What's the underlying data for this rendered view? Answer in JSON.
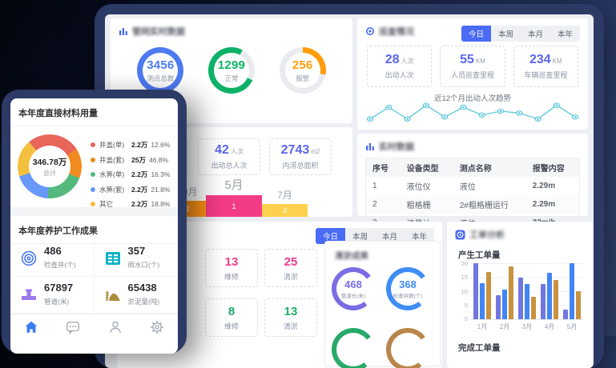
{
  "tablet": {
    "network_card": {
      "title": "管网实时数据",
      "donuts": [
        {
          "value": "3456",
          "label": "测点总数",
          "color": "#4d7bf3",
          "pct": 100,
          "from": 0
        },
        {
          "value": "1299",
          "label": "正常",
          "color": "#0db268",
          "pct": 76,
          "from": 115
        },
        {
          "value": "256",
          "label": "报警",
          "color": "#ff9d0a",
          "pct": 28,
          "from": 0
        }
      ]
    },
    "patrol_card": {
      "title": "巡查情况",
      "tabs": [
        "今日",
        "本周",
        "本月",
        "本年"
      ],
      "active_tab": "今日",
      "stats": [
        {
          "value": "28",
          "unit": "人次",
          "label": "出动人次"
        },
        {
          "value": "55",
          "unit": "KM",
          "label": "人员巡查里程"
        },
        {
          "value": "234",
          "unit": "KM",
          "label": "车辆巡查里程"
        }
      ],
      "trend_title": "近12个月出动人次趋势"
    },
    "realtime_card": {
      "title": "实时数据",
      "headers": [
        "序号",
        "设备类型",
        "测点名称",
        "报警内容"
      ],
      "rows": [
        [
          "1",
          "液位仪",
          "液位",
          "2.29m"
        ],
        [
          "2",
          "粗格栅",
          "2#粗格栅运行",
          "2.29m"
        ],
        [
          "3",
          "流量计",
          "液位",
          "32m/h"
        ]
      ]
    },
    "flood_card": {
      "stats": [
        {
          "value": "42",
          "unit": "人次",
          "label": "出动总人次"
        },
        {
          "value": "2743",
          "unit": "m2",
          "label": "内涝总面积"
        }
      ],
      "rank_months": [
        {
          "month": "10月",
          "value": "2",
          "color": "#ff9317"
        },
        {
          "month": "5月",
          "value": "1",
          "color": "#f43c86"
        },
        {
          "month": "7月",
          "value": "3",
          "color": "#fdd14d"
        }
      ]
    },
    "work_card": {
      "tabs": [
        "今日",
        "本周",
        "本月",
        "本年"
      ],
      "active_tab": "今日",
      "row1": [
        {
          "value": "13",
          "label": "维修"
        },
        {
          "value": "25",
          "label": "清淤"
        }
      ],
      "row2": [
        {
          "value": "8",
          "label": "维修"
        },
        {
          "value": "13",
          "label": "清淤"
        }
      ],
      "dredge": {
        "title": "清淤成果",
        "gauges": [
          {
            "value": "468",
            "label": "管道长(米)",
            "color": "#7a6de4",
            "pct": 76,
            "from": 140
          },
          {
            "value": "368",
            "label": "检查井数(个)",
            "color": "#3f8cf5",
            "pct": 76,
            "from": 140
          },
          {
            "value": "",
            "label": "",
            "color": "#27a968",
            "pct": 76,
            "from": 140
          },
          {
            "value": "",
            "label": "",
            "color": "#b9854a",
            "pct": 76,
            "from": 140
          }
        ]
      }
    },
    "order_card": {
      "title": "工单分析",
      "chart1_title": "产生工单量",
      "chart2_title": "完成工单量"
    }
  },
  "phone": {
    "material_section": {
      "title": "本年度直接材料用量",
      "total_value": "346.78万",
      "total_label": "总计",
      "legend": [
        {
          "name": "井盖(单)",
          "value": "2.2万",
          "pct": "12.6%",
          "color": "#e8655a"
        },
        {
          "name": "井盖(套)",
          "value": "25万",
          "pct": "46.8%",
          "color": "#f08c22"
        },
        {
          "name": "水箅(单)",
          "value": "2.2万",
          "pct": "16.3%",
          "color": "#55b97e"
        },
        {
          "name": "水箅(套)",
          "value": "2.2万",
          "pct": "21.8%",
          "color": "#6699f8"
        },
        {
          "name": "其它",
          "value": "2.2万",
          "pct": "18.8%",
          "color": "#f3c03f"
        }
      ]
    },
    "achievement_section": {
      "title": "本年度养护工作成果",
      "items": [
        {
          "value": "486",
          "label": "检查井(个)"
        },
        {
          "value": "357",
          "label": "雨水口(个)"
        },
        {
          "value": "67897",
          "label": "管道(米)"
        },
        {
          "value": "65438",
          "label": "淤泥量(吨)"
        }
      ]
    }
  },
  "chart_data": [
    {
      "type": "line",
      "title": "近12个月出动人次趋势",
      "x": [
        1,
        2,
        3,
        4,
        5,
        6,
        7,
        8,
        9,
        10,
        11,
        12
      ],
      "values": [
        2,
        5,
        2,
        5.5,
        2.5,
        5,
        3,
        4,
        3.5,
        2,
        5.5,
        2.5
      ],
      "color": "#4ec3da",
      "ylim": [
        0,
        6
      ]
    },
    {
      "type": "bar",
      "title": "产生工单量",
      "categories": [
        "1月",
        "2月",
        "3月",
        "4月",
        "5月"
      ],
      "series": [
        {
          "name": "series-1",
          "color": "#7277e0",
          "values": [
            20,
            8.5,
            15,
            12.5,
            3.5
          ]
        },
        {
          "name": "series-2",
          "color": "#4285f4",
          "values": [
            13,
            10.5,
            12.5,
            16.5,
            20
          ]
        },
        {
          "name": "series-3",
          "color": "#c8923f",
          "values": [
            17,
            19,
            8,
            14,
            10
          ]
        }
      ],
      "ylim": [
        0,
        20
      ],
      "yticks": [
        0,
        5,
        10,
        15,
        20
      ]
    },
    {
      "type": "pie",
      "title": "本年度直接材料用量",
      "labels": [
        "井盖(单)",
        "井盖(套)",
        "水箅(单)",
        "水箅(套)",
        "其它"
      ],
      "values": [
        12.6,
        46.8,
        16.3,
        21.8,
        18.8
      ],
      "display_slices": [
        27,
        15,
        20,
        19,
        19
      ],
      "center_value": "346.78万",
      "center_label": "总计"
    },
    {
      "type": "bar",
      "title": "内涝月份排行",
      "categories": [
        "10月",
        "5月",
        "7月"
      ],
      "values": [
        2,
        1,
        3
      ]
    }
  ]
}
